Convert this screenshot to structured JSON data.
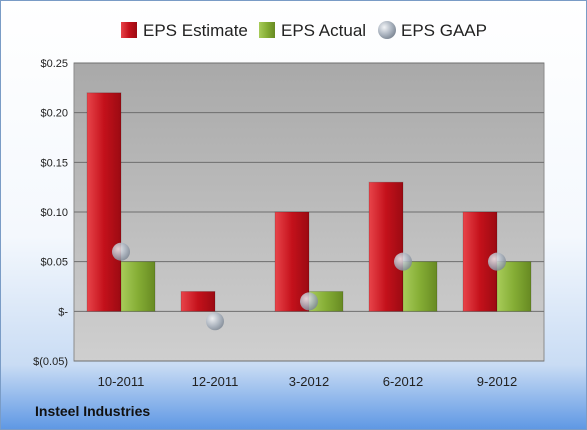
{
  "company": "Insteel Industries",
  "chart_data": {
    "type": "bar",
    "categories": [
      "10-2011",
      "12-2011",
      "3-2012",
      "6-2012",
      "9-2012"
    ],
    "series": [
      {
        "name": "EPS Estimate",
        "kind": "bar",
        "color": "#cc1a22",
        "values": [
          0.22,
          0.02,
          0.1,
          0.13,
          0.1
        ]
      },
      {
        "name": "EPS Actual",
        "kind": "bar",
        "color": "#8cb33a",
        "values": [
          0.05,
          null,
          0.02,
          0.05,
          0.05
        ]
      },
      {
        "name": "EPS GAAP",
        "kind": "scatter",
        "color": "#a9b4c2",
        "values": [
          0.06,
          -0.01,
          0.01,
          0.05,
          0.05
        ]
      }
    ],
    "yticks": [
      0.25,
      0.2,
      0.15,
      0.1,
      0.05,
      0,
      -0.05
    ],
    "ytick_labels": [
      "$0.25",
      "$0.20",
      "$0.15",
      "$0.10",
      "$0.05",
      "$-",
      "$(0.05)"
    ],
    "ylim": [
      -0.05,
      0.25
    ],
    "grid": true,
    "legend_position": "top"
  }
}
